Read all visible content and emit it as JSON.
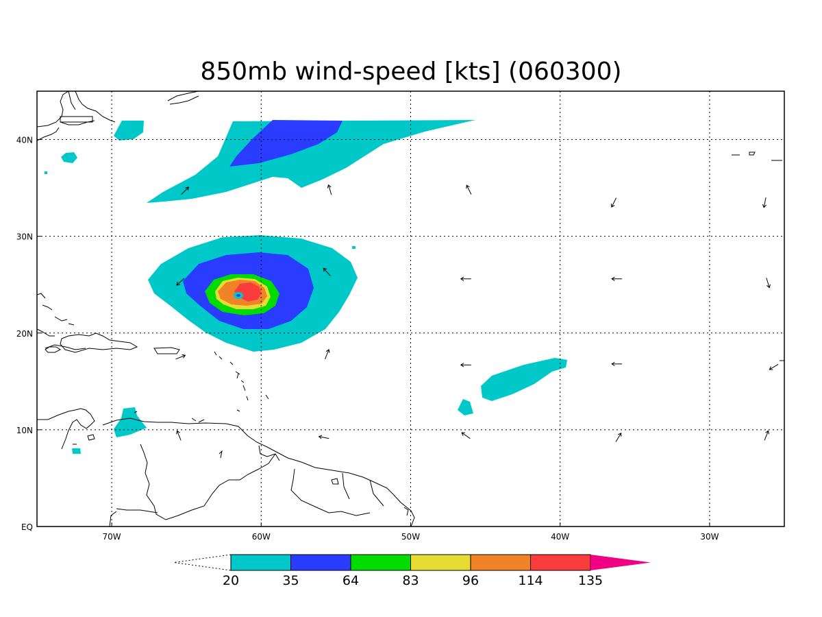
{
  "title": "850mb wind-speed [kts] (060300)",
  "map": {
    "lon_range": [
      -75,
      -25
    ],
    "lat_range": [
      0,
      45
    ],
    "x_ticks": [
      {
        "lon": -70,
        "label": "70W"
      },
      {
        "lon": -60,
        "label": "60W"
      },
      {
        "lon": -50,
        "label": "50W"
      },
      {
        "lon": -40,
        "label": "40W"
      },
      {
        "lon": -30,
        "label": "30W"
      }
    ],
    "y_ticks": [
      {
        "lat": 0,
        "label": "EQ"
      },
      {
        "lat": 10,
        "label": "10N"
      },
      {
        "lat": 20,
        "label": "20N"
      },
      {
        "lat": 30,
        "label": "30N"
      },
      {
        "lat": 40,
        "label": "40N"
      }
    ],
    "grid": "dotted"
  },
  "colorbar": {
    "levels": [
      "20",
      "35",
      "64",
      "83",
      "96",
      "114",
      "135"
    ],
    "colors": [
      "#00c8c8",
      "#2a3cff",
      "#00dc00",
      "#e6dc32",
      "#f08228",
      "#fa3c3c",
      "#f00082"
    ],
    "below_color": "#ffffff",
    "placement": "bottom"
  },
  "wind_vectors": [
    {
      "lon": -65.1,
      "lat": 34.7,
      "u": 1,
      "v": 1
    },
    {
      "lon": -55.4,
      "lat": 34.8,
      "u": -0.3,
      "v": 1
    },
    {
      "lon": -46.1,
      "lat": 34.8,
      "u": -0.5,
      "v": 1
    },
    {
      "lon": -36.4,
      "lat": 33.5,
      "u": -0.5,
      "v": -1
    },
    {
      "lon": -26.3,
      "lat": 33.5,
      "u": -0.2,
      "v": -1
    },
    {
      "lon": -65.4,
      "lat": 25.3,
      "u": -1,
      "v": -0.9
    },
    {
      "lon": -55.6,
      "lat": 26.3,
      "u": -0.9,
      "v": 1
    },
    {
      "lon": -46.3,
      "lat": 25.6,
      "u": -1,
      "v": 0
    },
    {
      "lon": -36.2,
      "lat": 25.6,
      "u": -1,
      "v": 0
    },
    {
      "lon": -26.1,
      "lat": 25.2,
      "u": 0.3,
      "v": -1
    },
    {
      "lon": -65.4,
      "lat": 17.5,
      "u": 1,
      "v": 0.4
    },
    {
      "lon": -55.6,
      "lat": 17.8,
      "u": 0.4,
      "v": 1
    },
    {
      "lon": -46.3,
      "lat": 16.7,
      "u": -1,
      "v": 0
    },
    {
      "lon": -36.2,
      "lat": 16.8,
      "u": -1,
      "v": 0
    },
    {
      "lon": -25.7,
      "lat": 16.5,
      "u": -1,
      "v": -0.6
    },
    {
      "lon": -65.5,
      "lat": 9.4,
      "u": -0.4,
      "v": 1
    },
    {
      "lon": -55.8,
      "lat": 9.2,
      "u": -1,
      "v": 0.2
    },
    {
      "lon": -46.3,
      "lat": 9.4,
      "u": -1,
      "v": 0.7
    },
    {
      "lon": -36.1,
      "lat": 9.2,
      "u": 0.6,
      "v": 1
    },
    {
      "lon": -26.2,
      "lat": 9.4,
      "u": 0.4,
      "v": 1
    }
  ]
}
